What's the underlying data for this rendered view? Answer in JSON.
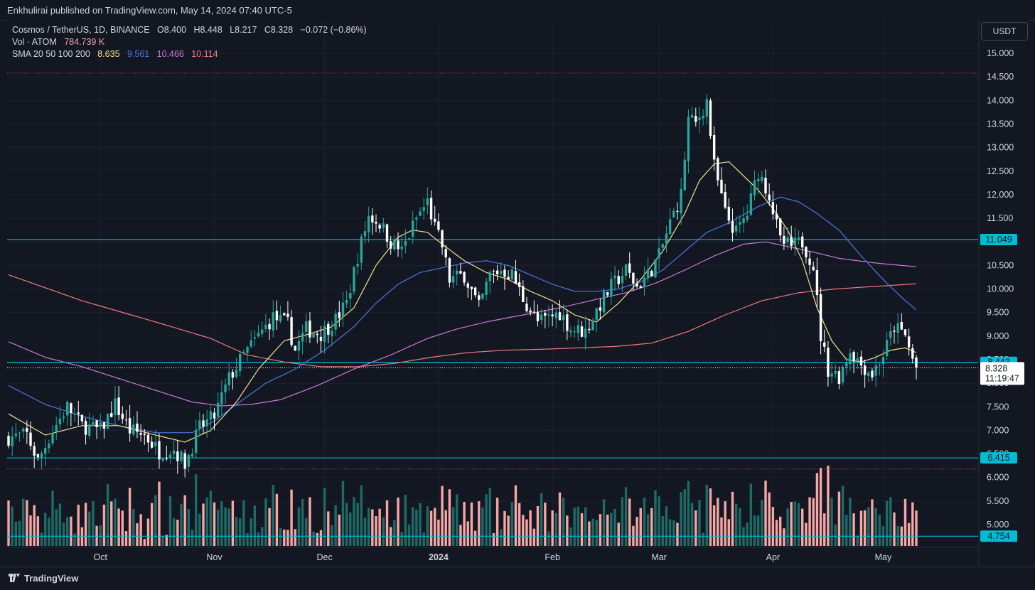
{
  "header": {
    "publish_line": "Enkhulirai published on TradingView.com, May 14, 2024 07:40 UTC-5"
  },
  "legend": {
    "symbol": "Cosmos / TetherUS, 1D, BINANCE",
    "o_label": "O",
    "o_value": "8.400",
    "h_label": "H",
    "h_value": "8.448",
    "l_label": "L",
    "l_value": "8.217",
    "c_label": "C",
    "c_value": "8.328",
    "change": "−0.072 (−0.86%)",
    "vol_label": "Vol · ATOM",
    "vol_value": "784.739 K",
    "sma_label": "SMA 20 50 100 200",
    "sma20": "8.635",
    "sma50": "9.561",
    "sma100": "10.466",
    "sma200": "10.114"
  },
  "currency_button": "USDT",
  "footer": {
    "brand": "TradingView"
  },
  "colors": {
    "background": "#131722",
    "up": "#26a69a",
    "down": "#ffffff",
    "vol_up": "#1d6b66",
    "vol_down": "#f7a5a5",
    "sma20": "#f5e08c",
    "sma50": "#4a78e0",
    "sma100": "#c97ad6",
    "sma200": "#f07a7a",
    "level_line": "#00bcd4",
    "dotted_line": "#e0306e"
  },
  "chart_data": {
    "type": "candlestick",
    "symbol": "Cosmos / TetherUS",
    "interval": "1D",
    "exchange": "BINANCE",
    "y_axis_ticks": [
      "15.000",
      "14.500",
      "14.000",
      "13.500",
      "13.000",
      "12.500",
      "12.000",
      "11.500",
      "11.000",
      "10.500",
      "10.000",
      "9.500",
      "9.000",
      "8.500",
      "8.000",
      "7.500",
      "7.000",
      "6.500",
      "6.000",
      "5.500",
      "5.000"
    ],
    "ylim": [
      4.7,
      15.2
    ],
    "x_axis_labels": [
      "Oct",
      "Nov",
      "Dec",
      "2024",
      "Feb",
      "Mar",
      "Apr",
      "May"
    ],
    "x_label_day_index": [
      25,
      56,
      86,
      117,
      148,
      177,
      208,
      238
    ],
    "horizontal_levels": [
      {
        "value": 11.049,
        "label": "11.049",
        "style": "solid"
      },
      {
        "value": 8.443,
        "label": "8.443",
        "style": "solid"
      },
      {
        "value": 6.415,
        "label": "6.415",
        "style": "solid"
      },
      {
        "value": 4.754,
        "label": "4.754",
        "style": "solid"
      },
      {
        "value": 14.58,
        "label": "",
        "style": "dotted"
      },
      {
        "value": 6.18,
        "label": "",
        "style": "dotted"
      }
    ],
    "last_price": {
      "value": 8.328,
      "label": "8.328",
      "countdown": "11:19:47"
    },
    "price_path": [
      [
        0,
        6.85
      ],
      [
        5,
        6.9
      ],
      [
        8,
        6.35
      ],
      [
        12,
        7.0
      ],
      [
        16,
        7.5
      ],
      [
        20,
        7.1
      ],
      [
        25,
        7.0
      ],
      [
        29,
        7.55
      ],
      [
        33,
        7.0
      ],
      [
        37,
        6.9
      ],
      [
        41,
        6.55
      ],
      [
        45,
        6.6
      ],
      [
        48,
        6.3
      ],
      [
        52,
        7.05
      ],
      [
        56,
        7.3
      ],
      [
        60,
        8.1
      ],
      [
        64,
        8.6
      ],
      [
        68,
        9.0
      ],
      [
        72,
        9.4
      ],
      [
        76,
        9.25
      ],
      [
        78,
        8.7
      ],
      [
        81,
        9.15
      ],
      [
        85,
        9.05
      ],
      [
        89,
        9.35
      ],
      [
        92,
        9.7
      ],
      [
        95,
        10.7
      ],
      [
        98,
        11.55
      ],
      [
        101,
        11.4
      ],
      [
        104,
        11.0
      ],
      [
        107,
        10.8
      ],
      [
        111,
        11.5
      ],
      [
        114,
        11.85
      ],
      [
        116,
        11.3
      ],
      [
        118,
        10.9
      ],
      [
        120,
        10.2
      ],
      [
        124,
        10.3
      ],
      [
        128,
        9.6
      ],
      [
        131,
        10.3
      ],
      [
        134,
        10.4
      ],
      [
        137,
        10.3
      ],
      [
        140,
        9.8
      ],
      [
        144,
        9.3
      ],
      [
        146,
        9.35
      ],
      [
        150,
        9.5
      ],
      [
        153,
        9.15
      ],
      [
        157,
        9.1
      ],
      [
        160,
        9.55
      ],
      [
        164,
        10.05
      ],
      [
        168,
        10.4
      ],
      [
        171,
        10.05
      ],
      [
        174,
        10.3
      ],
      [
        177,
        10.7
      ],
      [
        180,
        11.4
      ],
      [
        183,
        12.0
      ],
      [
        185,
        13.6
      ],
      [
        187,
        13.5
      ],
      [
        190,
        14.0
      ],
      [
        192,
        12.6
      ],
      [
        195,
        11.6
      ],
      [
        198,
        11.2
      ],
      [
        201,
        11.6
      ],
      [
        204,
        12.5
      ],
      [
        207,
        12.0
      ],
      [
        210,
        11.0
      ],
      [
        213,
        10.9
      ],
      [
        216,
        11.0
      ],
      [
        219,
        10.5
      ],
      [
        221,
        9.0
      ],
      [
        223,
        8.3
      ],
      [
        226,
        8.15
      ],
      [
        229,
        8.7
      ],
      [
        232,
        8.4
      ],
      [
        235,
        8.2
      ],
      [
        238,
        8.6
      ],
      [
        241,
        9.2
      ],
      [
        244,
        9.0
      ],
      [
        246,
        8.5
      ],
      [
        247,
        8.33
      ]
    ],
    "sma20": [
      [
        0,
        7.35
      ],
      [
        10,
        6.9
      ],
      [
        20,
        7.1
      ],
      [
        30,
        7.1
      ],
      [
        40,
        6.9
      ],
      [
        48,
        6.75
      ],
      [
        55,
        7.0
      ],
      [
        62,
        7.6
      ],
      [
        68,
        8.3
      ],
      [
        75,
        8.9
      ],
      [
        82,
        9.05
      ],
      [
        88,
        9.2
      ],
      [
        94,
        9.6
      ],
      [
        100,
        10.5
      ],
      [
        106,
        11.1
      ],
      [
        110,
        11.25
      ],
      [
        114,
        11.2
      ],
      [
        118,
        10.95
      ],
      [
        124,
        10.6
      ],
      [
        130,
        10.35
      ],
      [
        136,
        10.2
      ],
      [
        142,
        9.95
      ],
      [
        148,
        9.75
      ],
      [
        154,
        9.45
      ],
      [
        160,
        9.3
      ],
      [
        166,
        9.7
      ],
      [
        172,
        10.2
      ],
      [
        178,
        10.8
      ],
      [
        184,
        11.6
      ],
      [
        188,
        12.3
      ],
      [
        192,
        12.65
      ],
      [
        196,
        12.7
      ],
      [
        200,
        12.4
      ],
      [
        204,
        12.1
      ],
      [
        208,
        11.7
      ],
      [
        212,
        11.25
      ],
      [
        216,
        10.6
      ],
      [
        220,
        9.6
      ],
      [
        224,
        8.9
      ],
      [
        228,
        8.5
      ],
      [
        232,
        8.45
      ],
      [
        236,
        8.55
      ],
      [
        240,
        8.7
      ],
      [
        244,
        8.75
      ],
      [
        247,
        8.65
      ]
    ],
    "sma50": [
      [
        0,
        7.95
      ],
      [
        10,
        7.55
      ],
      [
        20,
        7.3
      ],
      [
        30,
        7.1
      ],
      [
        40,
        6.95
      ],
      [
        50,
        6.95
      ],
      [
        56,
        7.2
      ],
      [
        62,
        7.55
      ],
      [
        70,
        8.0
      ],
      [
        78,
        8.3
      ],
      [
        86,
        8.7
      ],
      [
        94,
        9.2
      ],
      [
        100,
        9.7
      ],
      [
        106,
        10.1
      ],
      [
        112,
        10.35
      ],
      [
        118,
        10.45
      ],
      [
        124,
        10.55
      ],
      [
        130,
        10.6
      ],
      [
        136,
        10.5
      ],
      [
        142,
        10.3
      ],
      [
        148,
        10.1
      ],
      [
        154,
        9.95
      ],
      [
        160,
        9.95
      ],
      [
        166,
        10.0
      ],
      [
        172,
        10.15
      ],
      [
        178,
        10.4
      ],
      [
        184,
        10.8
      ],
      [
        190,
        11.2
      ],
      [
        196,
        11.4
      ],
      [
        204,
        11.75
      ],
      [
        210,
        11.95
      ],
      [
        215,
        11.85
      ],
      [
        220,
        11.6
      ],
      [
        226,
        11.25
      ],
      [
        232,
        10.7
      ],
      [
        238,
        10.2
      ],
      [
        244,
        9.75
      ],
      [
        247,
        9.56
      ]
    ],
    "sma100": [
      [
        0,
        8.88
      ],
      [
        10,
        8.55
      ],
      [
        20,
        8.35
      ],
      [
        30,
        8.1
      ],
      [
        40,
        7.85
      ],
      [
        50,
        7.6
      ],
      [
        58,
        7.52
      ],
      [
        66,
        7.55
      ],
      [
        74,
        7.65
      ],
      [
        84,
        7.95
      ],
      [
        94,
        8.3
      ],
      [
        104,
        8.6
      ],
      [
        114,
        8.95
      ],
      [
        122,
        9.15
      ],
      [
        130,
        9.3
      ],
      [
        140,
        9.45
      ],
      [
        150,
        9.6
      ],
      [
        160,
        9.78
      ],
      [
        168,
        9.92
      ],
      [
        176,
        10.12
      ],
      [
        184,
        10.4
      ],
      [
        192,
        10.7
      ],
      [
        200,
        10.95
      ],
      [
        206,
        11.0
      ],
      [
        212,
        10.9
      ],
      [
        218,
        10.8
      ],
      [
        226,
        10.65
      ],
      [
        236,
        10.55
      ],
      [
        247,
        10.47
      ]
    ],
    "sma200": [
      [
        0,
        10.3
      ],
      [
        20,
        9.75
      ],
      [
        40,
        9.3
      ],
      [
        55,
        8.95
      ],
      [
        65,
        8.6
      ],
      [
        75,
        8.45
      ],
      [
        85,
        8.35
      ],
      [
        95,
        8.35
      ],
      [
        105,
        8.42
      ],
      [
        115,
        8.55
      ],
      [
        125,
        8.65
      ],
      [
        135,
        8.7
      ],
      [
        145,
        8.72
      ],
      [
        155,
        8.75
      ],
      [
        165,
        8.78
      ],
      [
        175,
        8.85
      ],
      [
        185,
        9.1
      ],
      [
        195,
        9.45
      ],
      [
        205,
        9.75
      ],
      [
        215,
        9.92
      ],
      [
        225,
        10.0
      ],
      [
        235,
        10.05
      ],
      [
        247,
        10.11
      ]
    ],
    "visible_days": 248
  }
}
